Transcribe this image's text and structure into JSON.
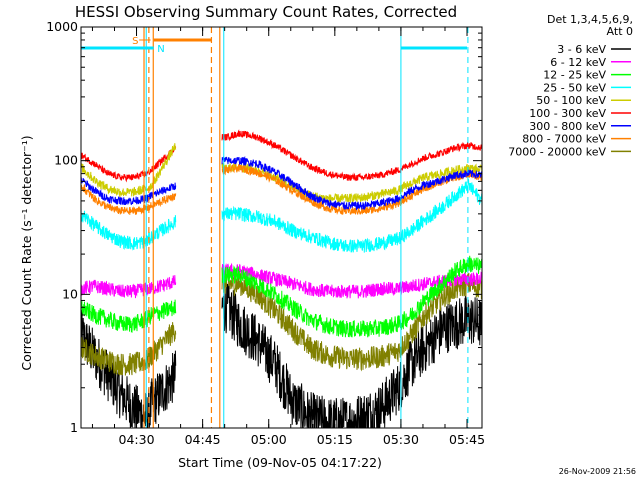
{
  "chart_data": {
    "type": "line",
    "title": "HESSI Observing Summary Count Rates, Corrected",
    "xlabel": "Start Time (09-Nov-05 04:17:22)",
    "ylabel": "Corrected Count Rate (s⁻¹ detector⁻¹)",
    "x_unit": "minutes after 04:17:22",
    "xlim": [
      0,
      91
    ],
    "ylim": [
      1,
      1000
    ],
    "yscale": "log",
    "grid": false,
    "x_ticks": [
      {
        "t": 12.6,
        "label": "04:30"
      },
      {
        "t": 27.6,
        "label": "04:45"
      },
      {
        "t": 42.6,
        "label": "05:00"
      },
      {
        "t": 57.6,
        "label": "05:15"
      },
      {
        "t": 72.6,
        "label": "05:30"
      },
      {
        "t": 87.6,
        "label": "05:45"
      }
    ],
    "y_ticks": [
      {
        "v": 1,
        "label": "1"
      },
      {
        "v": 10,
        "label": "10"
      },
      {
        "v": 100,
        "label": "100"
      },
      {
        "v": 1000,
        "label": "1000"
      }
    ],
    "legend_header": [
      "Det 1,3,4,5,6,9,",
      "Att 0"
    ],
    "legend_position": "right",
    "timestamp": "26-Nov-2009 21:56",
    "gap": [
      21.5,
      32
    ],
    "series": [
      {
        "name": "3 - 6 keV",
        "color": "#000000",
        "noise": 0.45,
        "x": [
          0,
          3,
          6,
          9,
          12,
          15,
          16,
          21.5,
          32,
          33,
          36,
          40,
          44,
          48,
          52,
          56,
          60,
          64,
          68,
          72,
          75,
          78,
          82,
          85,
          88,
          91
        ],
        "values": [
          5,
          3.5,
          2.5,
          1.8,
          1.4,
          1.2,
          1.5,
          2.5,
          8,
          8,
          6,
          4.5,
          3,
          1.6,
          1.2,
          1.1,
          1.1,
          1.2,
          1.4,
          2,
          3,
          4,
          5.5,
          6,
          6.5,
          6
        ]
      },
      {
        "name": "6 - 12 keV",
        "color": "#ff00ff",
        "noise": 0.12,
        "x": [
          0,
          3,
          6,
          9,
          12,
          15,
          16,
          21.5,
          32,
          33,
          36,
          40,
          44,
          48,
          52,
          56,
          60,
          64,
          68,
          72,
          75,
          78,
          82,
          85,
          88,
          91
        ],
        "values": [
          11,
          11.5,
          11,
          10.5,
          10.5,
          11,
          11,
          12.5,
          15,
          15,
          15,
          14,
          13,
          12,
          11,
          10.5,
          10.5,
          10.5,
          11,
          11,
          11.5,
          12,
          12.5,
          13,
          13,
          13
        ]
      },
      {
        "name": "12 - 25 keV",
        "color": "#00ff00",
        "noise": 0.15,
        "x": [
          0,
          3,
          6,
          9,
          12,
          15,
          16,
          21.5,
          32,
          33,
          36,
          40,
          44,
          48,
          52,
          56,
          60,
          64,
          68,
          72,
          75,
          78,
          82,
          85,
          88,
          91
        ],
        "values": [
          8,
          7,
          6.5,
          6,
          6,
          6.5,
          7,
          8,
          14,
          14,
          14,
          12,
          10,
          8,
          6.5,
          5.8,
          5.5,
          5.5,
          5.6,
          6,
          7,
          9,
          12,
          15,
          17,
          16
        ]
      },
      {
        "name": "25 - 50 keV",
        "color": "#00ffff",
        "noise": 0.12,
        "x": [
          0,
          3,
          6,
          9,
          12,
          15,
          16,
          21.5,
          32,
          33,
          36,
          40,
          44,
          48,
          52,
          56,
          60,
          64,
          68,
          72,
          75,
          78,
          82,
          85,
          88,
          91
        ],
        "values": [
          40,
          33,
          28,
          25,
          24,
          25,
          27,
          35,
          40,
          40,
          40,
          38,
          35,
          30,
          27,
          24.5,
          23,
          23,
          24,
          26,
          30,
          36,
          45,
          55,
          65,
          50
        ]
      },
      {
        "name": "50 - 100 keV",
        "color": "#cccc00",
        "noise": 0.08,
        "x": [
          0,
          3,
          6,
          9,
          12,
          15,
          16,
          21.5,
          32,
          33,
          36,
          40,
          44,
          48,
          52,
          56,
          60,
          64,
          68,
          72,
          75,
          78,
          82,
          85,
          88,
          91
        ],
        "values": [
          90,
          72,
          62,
          58,
          58,
          62,
          65,
          130,
          88,
          88,
          90,
          85,
          75,
          63,
          55,
          52,
          52,
          53,
          56,
          60,
          68,
          75,
          80,
          85,
          88,
          85
        ]
      },
      {
        "name": "100 - 300 keV",
        "color": "#ff0000",
        "noise": 0.06,
        "x": [
          0,
          3,
          6,
          9,
          12,
          15,
          16,
          21.5,
          32,
          33,
          36,
          40,
          44,
          48,
          52,
          56,
          60,
          64,
          68,
          72,
          75,
          78,
          82,
          85,
          88,
          91
        ],
        "values": [
          110,
          95,
          80,
          75,
          75,
          80,
          85,
          125,
          150,
          150,
          160,
          150,
          130,
          108,
          90,
          80,
          75,
          75,
          78,
          85,
          95,
          105,
          115,
          125,
          130,
          125
        ]
      },
      {
        "name": "300 - 800 keV",
        "color": "#0000ff",
        "noise": 0.07,
        "x": [
          0,
          3,
          6,
          9,
          12,
          15,
          16,
          21.5,
          32,
          33,
          36,
          40,
          44,
          48,
          52,
          56,
          60,
          64,
          68,
          72,
          75,
          78,
          82,
          85,
          88,
          91
        ],
        "values": [
          72,
          60,
          52,
          50,
          50,
          52,
          55,
          65,
          100,
          100,
          100,
          95,
          82,
          68,
          55,
          48,
          46,
          46,
          48,
          52,
          60,
          66,
          72,
          78,
          80,
          78
        ]
      },
      {
        "name": "800 - 7000 keV",
        "color": "#ff8000",
        "noise": 0.07,
        "x": [
          0,
          3,
          6,
          9,
          12,
          15,
          16,
          21.5,
          32,
          33,
          36,
          40,
          44,
          48,
          52,
          56,
          60,
          64,
          68,
          72,
          75,
          78,
          82,
          85,
          88,
          91
        ],
        "values": [
          65,
          52,
          45,
          42,
          42,
          44,
          46,
          55,
          85,
          85,
          88,
          82,
          72,
          60,
          50,
          44,
          42,
          42,
          44,
          48,
          55,
          62,
          70,
          75,
          80,
          75
        ]
      },
      {
        "name": "7000 - 20000 keV",
        "color": "#808000",
        "noise": 0.2,
        "x": [
          0,
          3,
          6,
          9,
          12,
          15,
          16,
          21.5,
          32,
          33,
          36,
          40,
          44,
          48,
          52,
          56,
          60,
          64,
          68,
          72,
          75,
          78,
          82,
          85,
          88,
          91
        ],
        "values": [
          4,
          3.5,
          3.2,
          3,
          3,
          3.2,
          3.5,
          5.5,
          12,
          12,
          12,
          10,
          7.5,
          5.5,
          4,
          3.5,
          3.3,
          3.3,
          3.4,
          3.8,
          5,
          7,
          9.5,
          11,
          12,
          11
        ]
      }
    ],
    "annotations": {
      "cyan_bars": [
        [
          0,
          16.5
        ],
        [
          72.6,
          87.6
        ]
      ],
      "cyan_bar_label": "N",
      "orange_bar": [
        16.5,
        29.5
      ],
      "orange_bar_label": "S",
      "cyan_vlines": [
        {
          "t": 14.8,
          "style": "solid"
        },
        {
          "t": 32.4,
          "style": "solid"
        },
        {
          "t": 72.6,
          "style": "solid"
        },
        {
          "t": 87.8,
          "style": "dashed"
        }
      ],
      "orange_vlines": [
        {
          "t": 14.3,
          "style": "solid"
        },
        {
          "t": 15.4,
          "style": "dashed"
        },
        {
          "t": 16.4,
          "style": "solid"
        },
        {
          "t": 29.6,
          "style": "dashed"
        },
        {
          "t": 31.5,
          "style": "solid"
        }
      ]
    }
  }
}
